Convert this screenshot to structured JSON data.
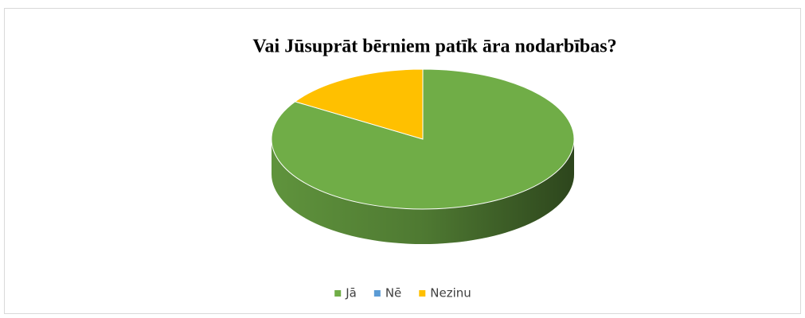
{
  "chart_data": {
    "type": "pie",
    "title": "Vai Jūsuprāt bērniem patīk āra nodarbības?",
    "categories": [
      "Jā",
      "Nē",
      "Nezinu"
    ],
    "values": [
      84,
      0,
      16
    ],
    "colors": [
      "#70ad47",
      "#5b9bd5",
      "#ffc000"
    ],
    "legend": "bottom"
  }
}
